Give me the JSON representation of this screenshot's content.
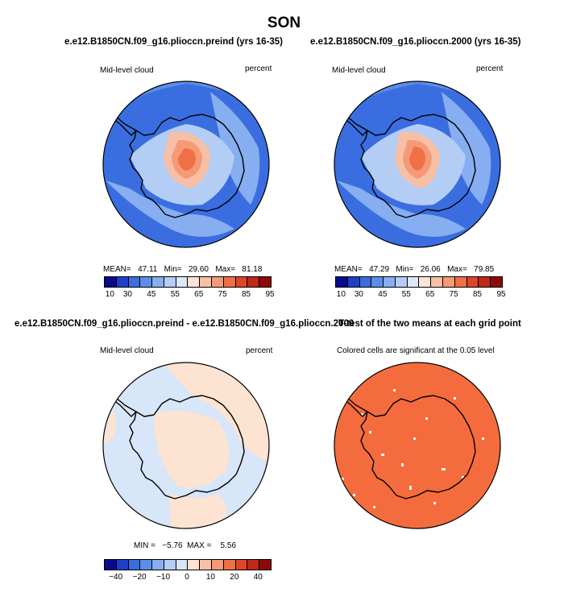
{
  "figure": {
    "title": "SON",
    "panels": [
      {
        "title": "e.e12.B1850CN.f09_g16.plioccn.preind (yrs 16-35)",
        "left_label": "Mid-level cloud",
        "right_label": "percent",
        "stats": "MEAN=   47.11   Min=   29.60   Max=   81.18",
        "colorbar_ticks": [
          "10",
          "30",
          "45",
          "55",
          "65",
          "75",
          "85",
          "95"
        ]
      },
      {
        "title": "e.e12.B1850CN.f09_g16.plioccn.2000 (yrs 16-35)",
        "left_label": "Mid-level cloud",
        "right_label": "percent",
        "stats": "MEAN=   47.29   Min=   26.06   Max=   79.85",
        "colorbar_ticks": [
          "10",
          "30",
          "45",
          "55",
          "65",
          "75",
          "85",
          "95"
        ]
      },
      {
        "title": "e.e12.B1850CN.f09_g16.plioccn.preind - e.e12.B1850CN.f09_g16.plioccn.2000",
        "left_label": "Mid-level cloud",
        "right_label": "percent",
        "stats": "MIN =   −5.76  MAX =    5.56",
        "colorbar_ticks": [
          "−40",
          "−20",
          "−10",
          "0",
          "10",
          "20",
          "40"
        ]
      },
      {
        "title": "T-test of the two means at each grid point",
        "subtitle": "Colored cells are significant at the 0.05 level"
      }
    ]
  },
  "colors": {
    "abs_scale": [
      "#0a0a8c",
      "#1f3fc8",
      "#3a6ee0",
      "#5b8ee8",
      "#86aef0",
      "#b3cdf5",
      "#dde9fb",
      "#fbe3d6",
      "#f7c0a6",
      "#f49a76",
      "#ef6f46",
      "#e0442a",
      "#c02818",
      "#8c0a0a"
    ],
    "diff_scale": [
      "#0a0a8c",
      "#1f3fc8",
      "#3a6ee0",
      "#5b8ee8",
      "#86aef0",
      "#b3cdf5",
      "#d7e6f8",
      "#fde3d2",
      "#f7c0a6",
      "#f49a76",
      "#ef6f46",
      "#e0442a",
      "#c02818",
      "#8c0a0a"
    ],
    "ttest_fill": "#f46c3e"
  }
}
